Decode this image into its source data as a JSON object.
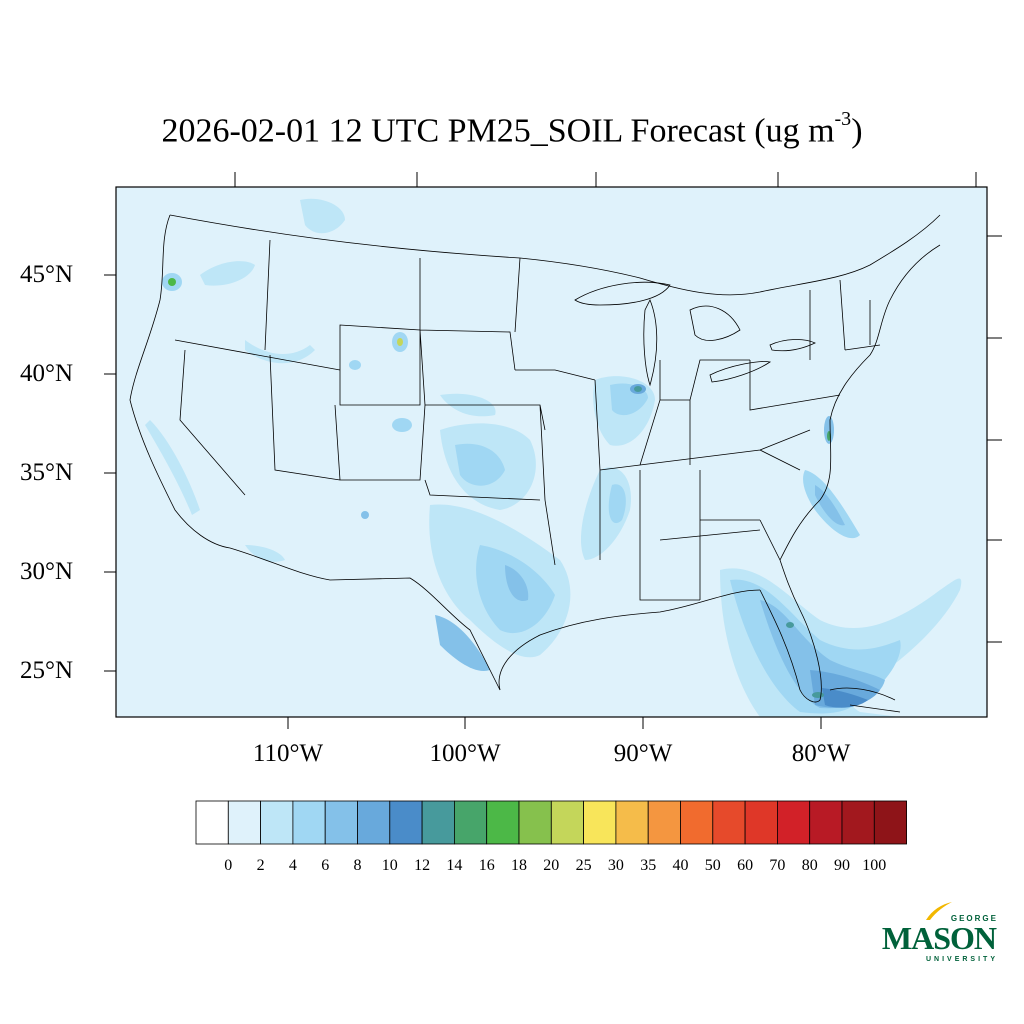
{
  "title": {
    "text": "2026-02-01 12 UTC PM25_SOIL Forecast (ug m",
    "superscript": "-3",
    "close": ")"
  },
  "map": {
    "projection": "Lambert conformal conic",
    "region": "Contiguous United States",
    "background_color": "#dff2fb",
    "lat_labels": [
      "45°N",
      "40°N",
      "35°N",
      "30°N",
      "25°N"
    ],
    "lon_labels": [
      "110°W",
      "100°W",
      "90°W",
      "80°W"
    ],
    "concentration_areas": [
      {
        "location": "Southern Florida and Bahamas",
        "level": "10-16"
      },
      {
        "location": "Atlantic off Florida",
        "level": "2-6"
      },
      {
        "location": "Texas",
        "level": "4-10"
      },
      {
        "location": "Oklahoma / Kansas",
        "level": "4-8"
      },
      {
        "location": "Illinois",
        "level": "6-18"
      },
      {
        "location": "Mississippi River, Arkansas",
        "level": "4-8"
      },
      {
        "location": "Carolina coast",
        "level": "4-8"
      },
      {
        "location": "Wyoming / Nebraska",
        "level": "6-25"
      },
      {
        "location": "Oregon / Washington",
        "level": "6-20"
      },
      {
        "location": "Idaho",
        "level": "2-6"
      },
      {
        "location": "California valley",
        "level": "2-4"
      },
      {
        "location": "Chesapeake Bay",
        "level": "8-16"
      }
    ]
  },
  "colorbar": {
    "labels": [
      "0",
      "2",
      "4",
      "6",
      "8",
      "10",
      "12",
      "14",
      "16",
      "18",
      "20",
      "25",
      "30",
      "35",
      "40",
      "50",
      "60",
      "70",
      "80",
      "90",
      "100"
    ],
    "colors": [
      "#ffffff",
      "#dff2fb",
      "#bee6f7",
      "#a0d7f3",
      "#84c1e9",
      "#68a9dc",
      "#4a8cc9",
      "#479a9c",
      "#47a56a",
      "#4cb847",
      "#86c14d",
      "#c4d65a",
      "#f8e55a",
      "#f5bc4a",
      "#f49640",
      "#f16b2e",
      "#e64a2b",
      "#df3728",
      "#d22128",
      "#b81a25",
      "#a2181e",
      "#8e1418"
    ]
  },
  "logo": {
    "george": "GEORGE",
    "mason": "MASON",
    "university": "UNIVERSITY",
    "color": "#00613a"
  }
}
